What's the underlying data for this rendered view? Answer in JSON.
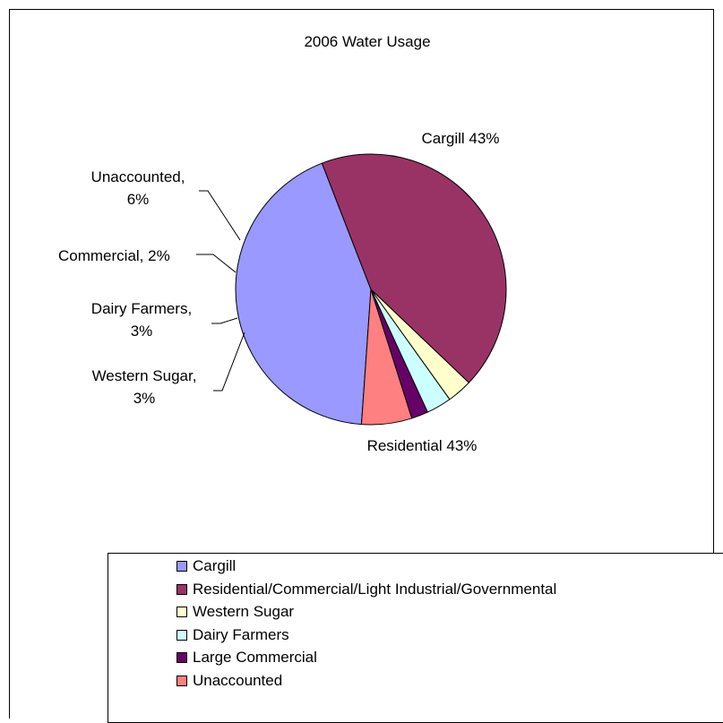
{
  "chart_data": {
    "type": "pie",
    "title": "2006 Water Usage",
    "slices": [
      {
        "name": "Cargill",
        "value": 43,
        "color": "#9999FF",
        "label": [
          "Cargill 43%"
        ]
      },
      {
        "name": "Residential/Commercial/Light Industrial/Governmental",
        "value": 43,
        "color": "#993366",
        "label": [
          "Residential 43%"
        ]
      },
      {
        "name": "Western Sugar",
        "value": 3,
        "color": "#FFFFCC",
        "label": [
          "Western Sugar,",
          "3%"
        ]
      },
      {
        "name": "Dairy Farmers",
        "value": 3,
        "color": "#CCFFFF",
        "label": [
          "Dairy Farmers,",
          "3%"
        ]
      },
      {
        "name": "Large Commercial",
        "value": 2,
        "color": "#660066",
        "label": [
          "Commercial, 2%"
        ]
      },
      {
        "name": "Unaccounted",
        "value": 6,
        "color": "#FF8080",
        "label": [
          "Unaccounted,",
          "6%"
        ]
      }
    ],
    "legend_position": "bottom"
  }
}
